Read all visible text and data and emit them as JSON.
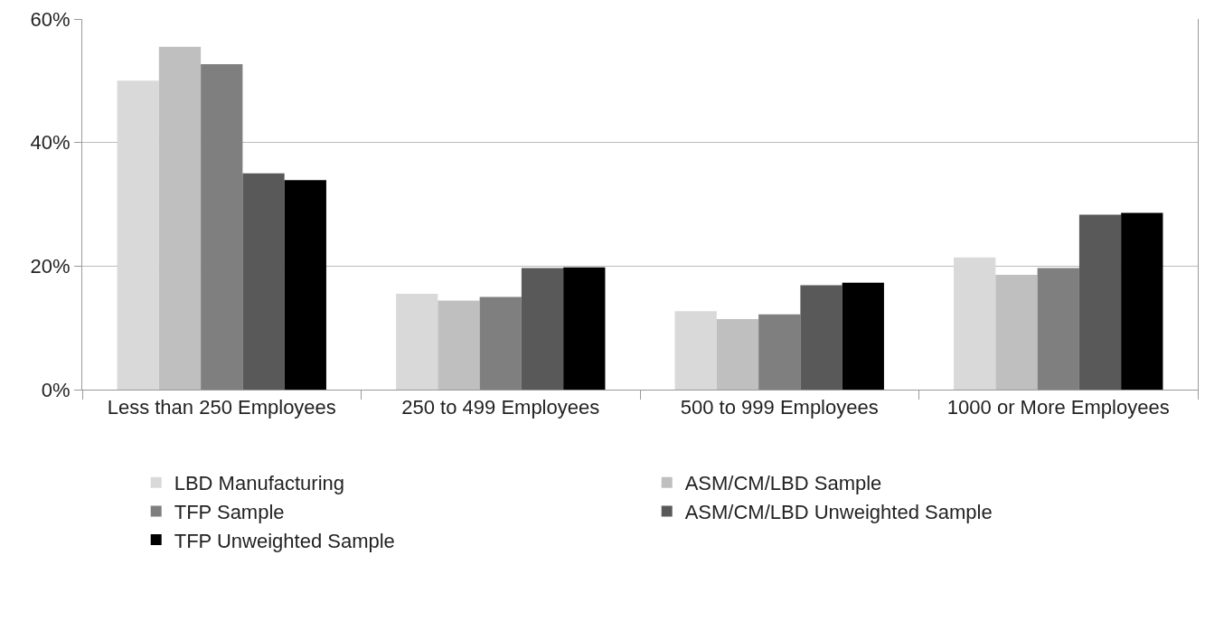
{
  "chart_data": {
    "type": "bar",
    "categories": [
      "Less than 250 Employees",
      "250 to 499 Employees",
      "500 to 999 Employees",
      "1000 or More Employees"
    ],
    "series": [
      {
        "name": "LBD Manufacturing",
        "color": "#d9d9d9",
        "values": [
          50.0,
          15.5,
          12.7,
          21.4
        ]
      },
      {
        "name": "ASM/CM/LBD Sample",
        "color": "#bfbfbf",
        "values": [
          55.5,
          14.4,
          11.4,
          18.6
        ]
      },
      {
        "name": "TFP Sample",
        "color": "#7f7f7f",
        "values": [
          52.7,
          15.0,
          12.2,
          19.7
        ]
      },
      {
        "name": "ASM/CM/LBD Unweighted Sample",
        "color": "#595959",
        "values": [
          35.0,
          19.7,
          16.9,
          28.3
        ]
      },
      {
        "name": "TFP Unweighted Sample",
        "color": "#000000",
        "values": [
          33.9,
          19.8,
          17.3,
          28.6
        ]
      }
    ],
    "ylim": [
      0,
      60
    ],
    "yticks": [
      {
        "value": 0,
        "label": "0%"
      },
      {
        "value": 20,
        "label": "20%"
      },
      {
        "value": 40,
        "label": "40%"
      },
      {
        "value": 60,
        "label": "60%"
      }
    ],
    "grid": "y",
    "legend": "bottom"
  }
}
